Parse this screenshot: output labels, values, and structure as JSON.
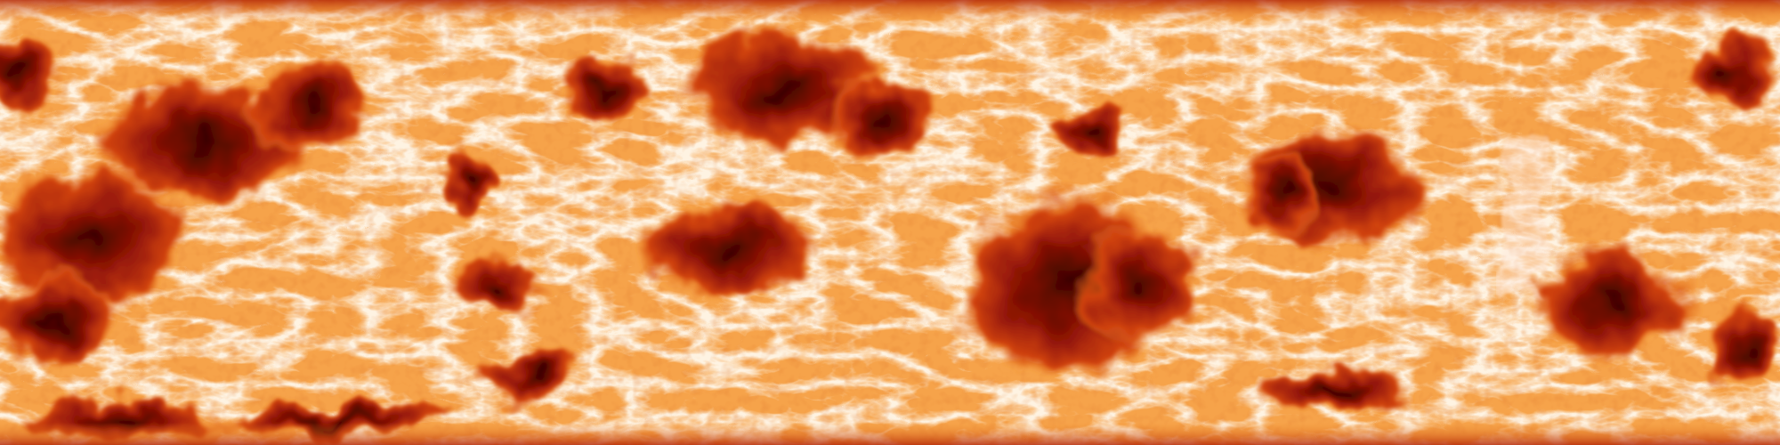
{
  "image": {
    "kind": "equirectangular heat-colour texture",
    "colors": {
      "background": "#f6a34a",
      "light": "#fff6e4",
      "mid": "#f08a26",
      "hot": "#d04210",
      "deep": "#8e1306",
      "core": "#3a0200"
    }
  }
}
